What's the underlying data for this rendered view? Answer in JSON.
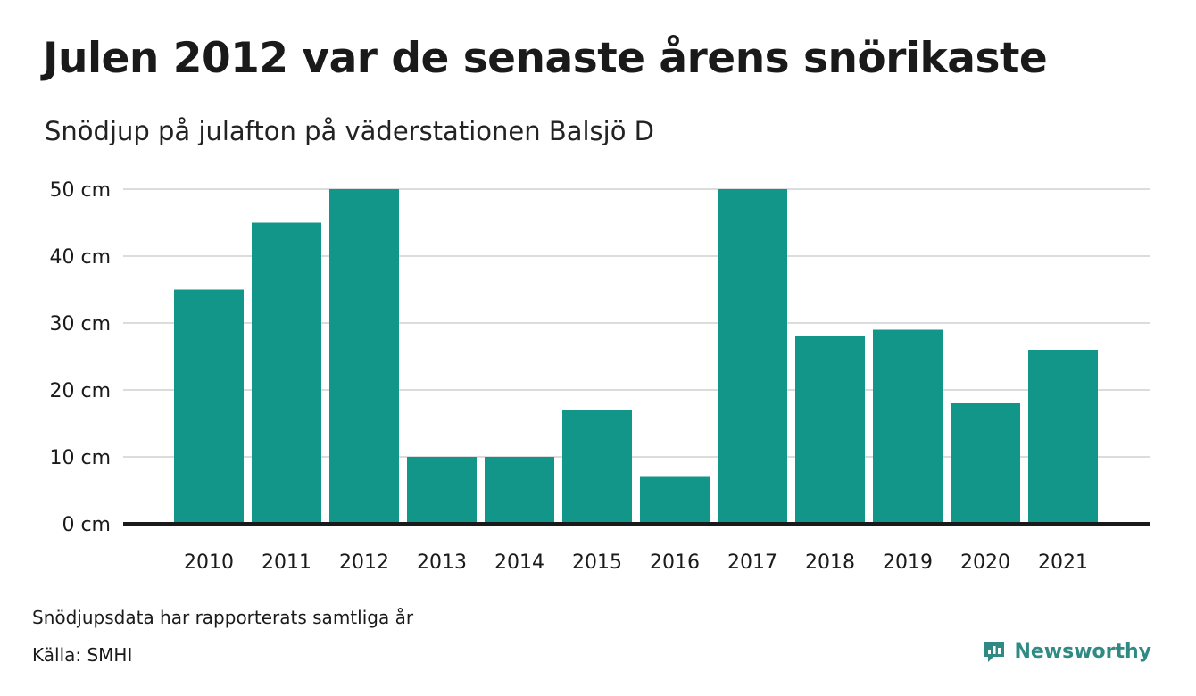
{
  "header": {
    "title": "Julen 2012 var de senaste årens snörikaste",
    "subtitle": "Snödjup på julafton på väderstationen Balsjö D"
  },
  "footer": {
    "note": "Snödjupsdata har rapporterats samtliga år",
    "source": "Källa: SMHI",
    "brand": "Newsworthy",
    "brand_icon": "newsworthy-logo-icon"
  },
  "colors": {
    "bar": "#13968a",
    "grid": "#dcdcdc",
    "baseline": "#1a1a1a",
    "brand": "#2f8a84"
  },
  "chart_data": {
    "type": "bar",
    "title": "Julen 2012 var de senaste årens snörikaste",
    "subtitle": "Snödjup på julafton på väderstationen Balsjö D",
    "xlabel": "",
    "ylabel": "",
    "categories": [
      "2010",
      "2011",
      "2012",
      "2013",
      "2014",
      "2015",
      "2016",
      "2017",
      "2018",
      "2019",
      "2020",
      "2021"
    ],
    "values": [
      35,
      45,
      50,
      10,
      10,
      17,
      7,
      50,
      28,
      29,
      18,
      26
    ],
    "unit": "cm",
    "yticks": [
      0,
      10,
      20,
      30,
      40,
      50
    ],
    "ytick_labels": [
      "0 cm",
      "10 cm",
      "20 cm",
      "30 cm",
      "40 cm",
      "50 cm"
    ],
    "ylim": [
      0,
      50
    ],
    "grid": true,
    "legend": "none"
  }
}
